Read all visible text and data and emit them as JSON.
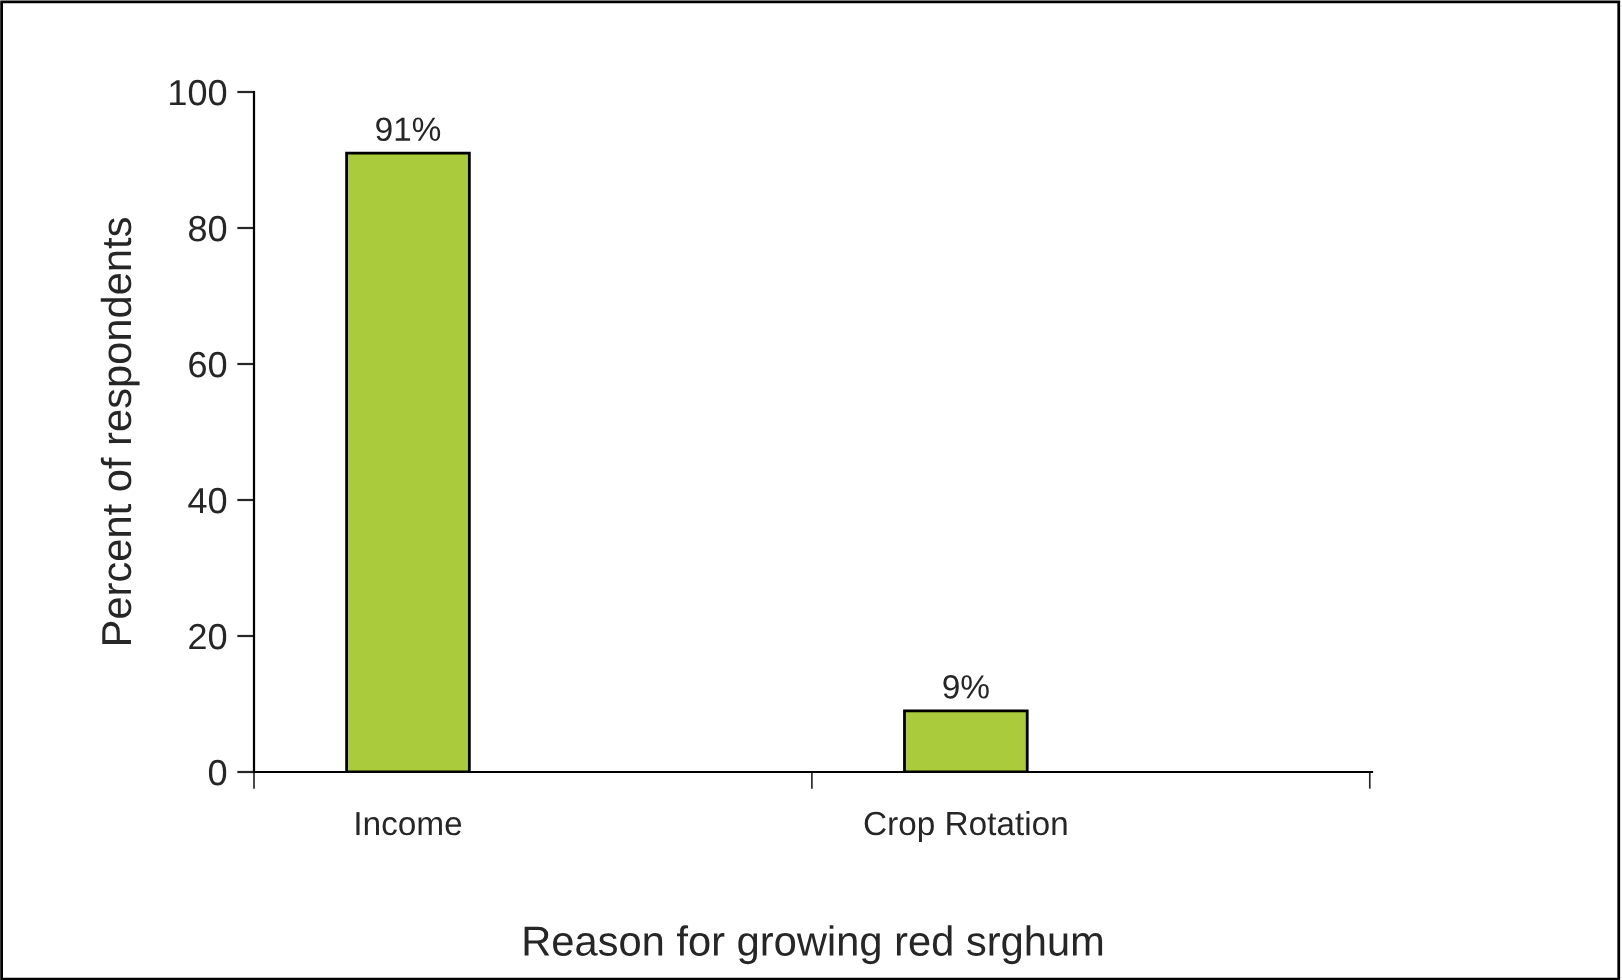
{
  "chart_data": {
    "type": "bar",
    "xlabel": "Reason for growing red srghum",
    "ylabel": "Percent of respondents",
    "categories": [
      "Income",
      "Crop Rotation"
    ],
    "values": [
      91,
      9
    ],
    "color": "#a9cb3c",
    "value_labels": [
      "91%",
      "9%"
    ],
    "ylim": [
      0,
      100
    ],
    "yticks": [
      0,
      20,
      40,
      60,
      80,
      100
    ],
    "grid": false,
    "legend": false
  }
}
